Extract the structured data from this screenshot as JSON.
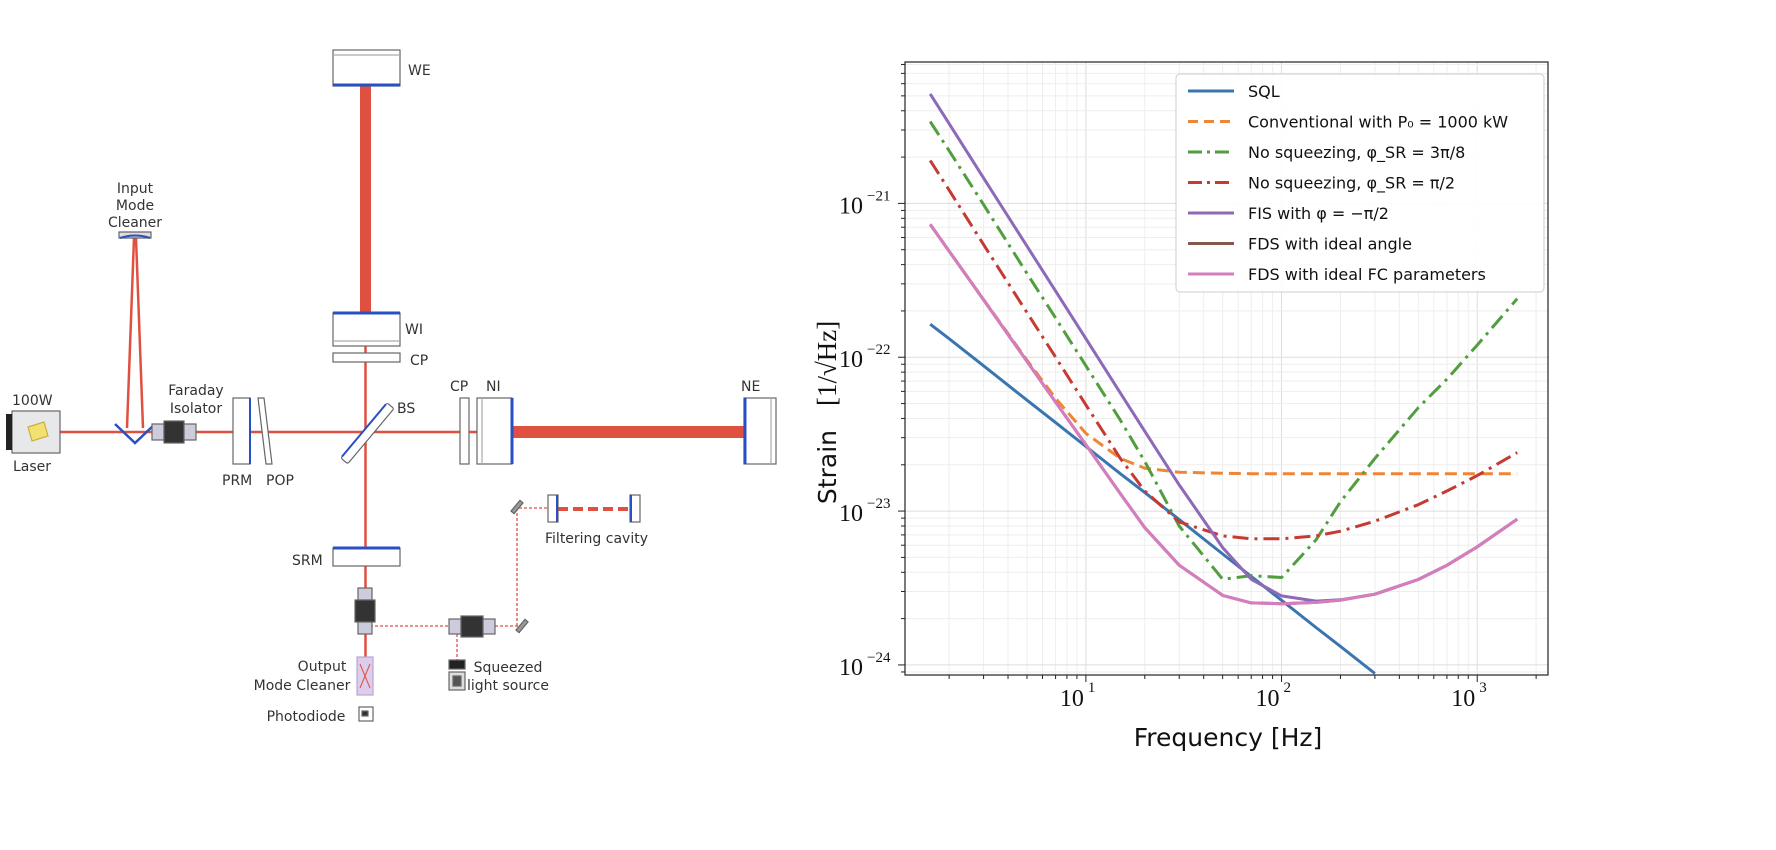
{
  "diagram": {
    "labels": {
      "we": "WE",
      "wi": "WI",
      "cp_top": "CP",
      "cp_right": "CP",
      "ni": "NI",
      "ne": "NE",
      "bs": "BS",
      "laser_power": "100W",
      "laser": "Laser",
      "imc": [
        "Input",
        "Mode",
        "Cleaner"
      ],
      "faraday": [
        "Faraday",
        "Isolator"
      ],
      "prm": "PRM",
      "pop": "POP",
      "srm": "SRM",
      "filter": "Filtering cavity",
      "squeezer": [
        "Squeezed",
        "light source"
      ],
      "omc": [
        "Output",
        "Mode Cleaner"
      ],
      "photodiode": "Photodiode"
    },
    "colors": {
      "beam": "#e05040",
      "coating": "#2a4fc0"
    }
  },
  "chart_data": {
    "type": "line",
    "xscale": "log",
    "yscale": "log",
    "xlim": [
      1.19,
      2300
    ],
    "ylim": [
      8.6e-25,
      8.3e-21
    ],
    "xlabel": "Frequency [Hz]",
    "ylabel": "Strain",
    "ylabel_unit": "[1/√Hz]",
    "grid": true,
    "legend_position": "top-right",
    "x_ticks": [
      10,
      100,
      1000
    ],
    "x_tick_labels": [
      {
        "b": "10",
        "e": "1"
      },
      {
        "b": "10",
        "e": "2"
      },
      {
        "b": "10",
        "e": "3"
      }
    ],
    "y_ticks": [
      1e-24,
      1e-23,
      1e-22,
      1e-21
    ],
    "y_tick_labels": [
      {
        "b": "10",
        "e": "−24"
      },
      {
        "b": "10",
        "e": "−23"
      },
      {
        "b": "10",
        "e": "−22"
      },
      {
        "b": "10",
        "e": "−21"
      }
    ],
    "x": [
      1.6,
      2,
      3,
      5,
      7,
      10,
      15,
      20,
      30,
      50,
      70,
      100,
      150,
      200,
      300,
      500,
      700,
      1000,
      1600
    ],
    "series": [
      {
        "name": "SQL",
        "color": "#3b75af",
        "dash": "solid",
        "values": [
          1.64e-22,
          1.32e-22,
          8.8e-23,
          5.26e-23,
          3.76e-23,
          2.63e-23,
          1.75e-23,
          1.32e-23,
          8.8e-24,
          5.26e-24,
          3.76e-24,
          2.63e-24,
          1.75e-24,
          1.32e-24,
          8.8e-25,
          null,
          null,
          null,
          null
        ]
      },
      {
        "name": "Conventional with P₀ = 1000 kW",
        "color": "#ef8636",
        "dash": "dashed",
        "values": [
          7.3e-22,
          4.9e-22,
          2.37e-22,
          9.56e-23,
          5.4e-23,
          3.2e-23,
          2.2e-23,
          1.9e-23,
          1.79e-23,
          1.76e-23,
          1.75e-23,
          1.75e-23,
          1.75e-23,
          1.75e-23,
          1.75e-23,
          1.75e-23,
          1.75e-23,
          1.75e-23,
          1.75e-23
        ]
      },
      {
        "name": "No squeezing, φ_SR = 3π/8",
        "color": "#519e3e",
        "dash": "dashdot",
        "values": [
          3.4e-21,
          2.2e-21,
          9.8e-22,
          3.5e-22,
          1.8e-22,
          8.8e-23,
          3.9e-23,
          2.1e-23,
          8e-24,
          3.6e-24,
          3.8e-24,
          3.7e-24,
          6.5e-24,
          1.15e-23,
          2.2e-23,
          4.7e-23,
          7.2e-23,
          1.2e-22,
          2.4e-22
        ]
      },
      {
        "name": "No squeezing, φ_SR = π/2",
        "color": "#c53a32",
        "dash": "dashdot",
        "values": [
          1.9e-21,
          1.22e-21,
          5.4e-22,
          1.95e-22,
          1e-22,
          4.9e-23,
          2.2e-23,
          1.35e-23,
          8.5e-24,
          6.9e-24,
          6.6e-24,
          6.6e-24,
          6.9e-24,
          7.4e-24,
          8.6e-24,
          1.1e-23,
          1.35e-23,
          1.7e-23,
          2.4e-23
        ]
      },
      {
        "name": "FIS with φ = −π/2",
        "color": "#8d69b8",
        "dash": "solid",
        "values": [
          5.15e-21,
          3.3e-21,
          1.46e-21,
          5.27e-22,
          2.69e-22,
          1.32e-22,
          5.86e-23,
          3.3e-23,
          1.48e-23,
          5.79e-24,
          3.6e-24,
          2.81e-24,
          2.6e-24,
          2.65e-24,
          2.88e-24,
          3.59e-24,
          4.44e-24,
          5.85e-24,
          8.86e-24
        ]
      },
      {
        "name": "FDS with ideal angle",
        "color": "#84584e",
        "dash": "solid",
        "values": [
          7.3e-22,
          4.9e-22,
          2.36e-22,
          9.4e-23,
          5.1e-23,
          2.7e-23,
          1.3e-23,
          7.8e-24,
          4.45e-24,
          2.83e-24,
          2.53e-24,
          2.5e-24,
          2.55e-24,
          2.64e-24,
          2.88e-24,
          3.59e-24,
          4.44e-24,
          5.85e-24,
          8.86e-24
        ]
      },
      {
        "name": "FDS with ideal FC parameters",
        "color": "#d57dbf",
        "dash": "solid",
        "values": [
          7.3e-22,
          4.9e-22,
          2.36e-22,
          9.4e-23,
          5.1e-23,
          2.7e-23,
          1.3e-23,
          7.8e-24,
          4.45e-24,
          2.83e-24,
          2.53e-24,
          2.5e-24,
          2.55e-24,
          2.64e-24,
          2.88e-24,
          3.59e-24,
          4.44e-24,
          5.85e-24,
          8.86e-24
        ]
      }
    ]
  }
}
